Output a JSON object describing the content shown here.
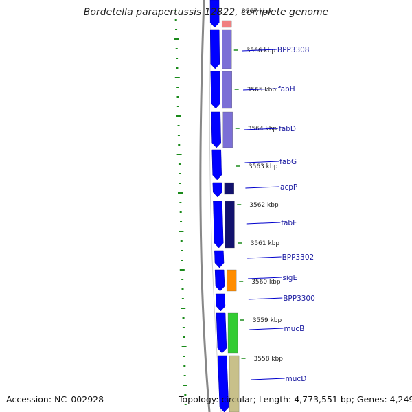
{
  "title": "Bordetella parapertussis 12822, complete genome",
  "accession_label": "Accession: NC_002928",
  "topology_label": "Topology: circular; Length: 4,773,551 bp; Genes: 4,249",
  "top_tick_label": "3567 kbp",
  "kbp_ticks": [
    "3566 kbp",
    "3565 kbp",
    "3564 kbp",
    "3563 kbp",
    "3562 kbp",
    "3561 kbp",
    "3560 kbp",
    "3559 kbp",
    "3558 kbp"
  ],
  "genes": [
    "BPP3308",
    "fabH",
    "fabD",
    "fabG",
    "acpP",
    "fabF",
    "BPP3302",
    "sigE",
    "BPP3300",
    "mucB",
    "mucD"
  ],
  "colors": {
    "cds_blue": "#0000ff",
    "backbone": "#7a7a7a",
    "dotted_track": "#1a8a1a",
    "label_line": "#0000cc",
    "cog_lavender": "#7b6fd6",
    "cog_darknavy": "#12126e",
    "cog_salmon": "#f08080",
    "cog_orange": "#ff8c00",
    "cog_green": "#33cc33",
    "cog_khaki": "#c8c08a"
  }
}
